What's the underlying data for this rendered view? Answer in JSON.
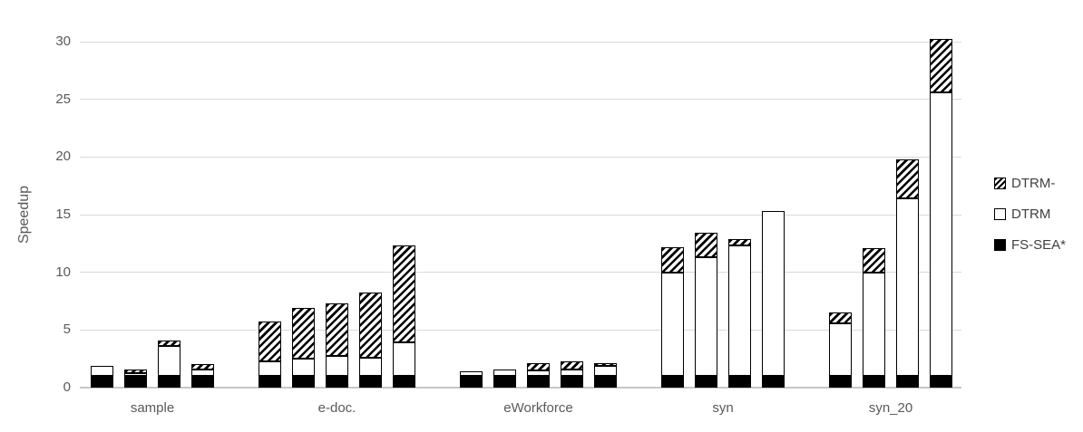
{
  "chart_data": {
    "type": "bar",
    "stacked": true,
    "title": "",
    "xlabel": "",
    "ylabel": "Speedup",
    "ylim": [
      0,
      30
    ],
    "yticks": [
      0,
      5,
      10,
      15,
      20,
      25,
      30
    ],
    "grid": "horizontal",
    "legend_position": "right",
    "legend": [
      {
        "label": "DTRM-",
        "style": "hatch"
      },
      {
        "label": "DTRM",
        "style": "white"
      },
      {
        "label": "FS-SEA*",
        "style": "black"
      }
    ],
    "segments_bottom_to_top": [
      "FS-SEA*",
      "DTRM",
      "DTRM-"
    ],
    "groups": [
      {
        "category": "sample",
        "bars": [
          [
            1.0,
            0.85,
            0.0
          ],
          [
            1.0,
            0.25,
            0.35
          ],
          [
            1.0,
            2.6,
            0.5
          ],
          [
            1.0,
            0.6,
            0.45
          ]
        ]
      },
      {
        "category": "e-doc.",
        "bars": [
          [
            1.0,
            1.3,
            3.4
          ],
          [
            1.0,
            1.55,
            4.35
          ],
          [
            1.0,
            1.75,
            4.55
          ],
          [
            1.0,
            1.6,
            5.65
          ],
          [
            1.0,
            2.9,
            8.4
          ]
        ]
      },
      {
        "category": "eWorkforce",
        "bars": [
          [
            1.0,
            0.4,
            0.0
          ],
          [
            1.0,
            0.6,
            0.0
          ],
          [
            1.0,
            0.5,
            0.6
          ],
          [
            1.0,
            0.6,
            0.7
          ],
          [
            1.0,
            0.9,
            0.25
          ]
        ]
      },
      {
        "category": "syn",
        "bars": [
          [
            1.0,
            9.0,
            2.2
          ],
          [
            1.0,
            10.3,
            2.1
          ],
          [
            1.0,
            11.3,
            0.6
          ],
          [
            1.0,
            14.3,
            0.0
          ]
        ]
      },
      {
        "category": "syn_20",
        "bars": [
          [
            1.0,
            4.55,
            1.0
          ],
          [
            1.0,
            9.0,
            2.1
          ],
          [
            1.0,
            15.4,
            3.4
          ],
          [
            1.0,
            24.6,
            4.6
          ]
        ]
      }
    ]
  },
  "colors": {
    "background": "#ffffff",
    "bar_outline": "#000000",
    "fs_sea_fill": "#000000",
    "dtrm_fill": "#ffffff",
    "gridline": "#d9d9d9",
    "axis_text": "#595959",
    "legend_text": "#404040"
  }
}
